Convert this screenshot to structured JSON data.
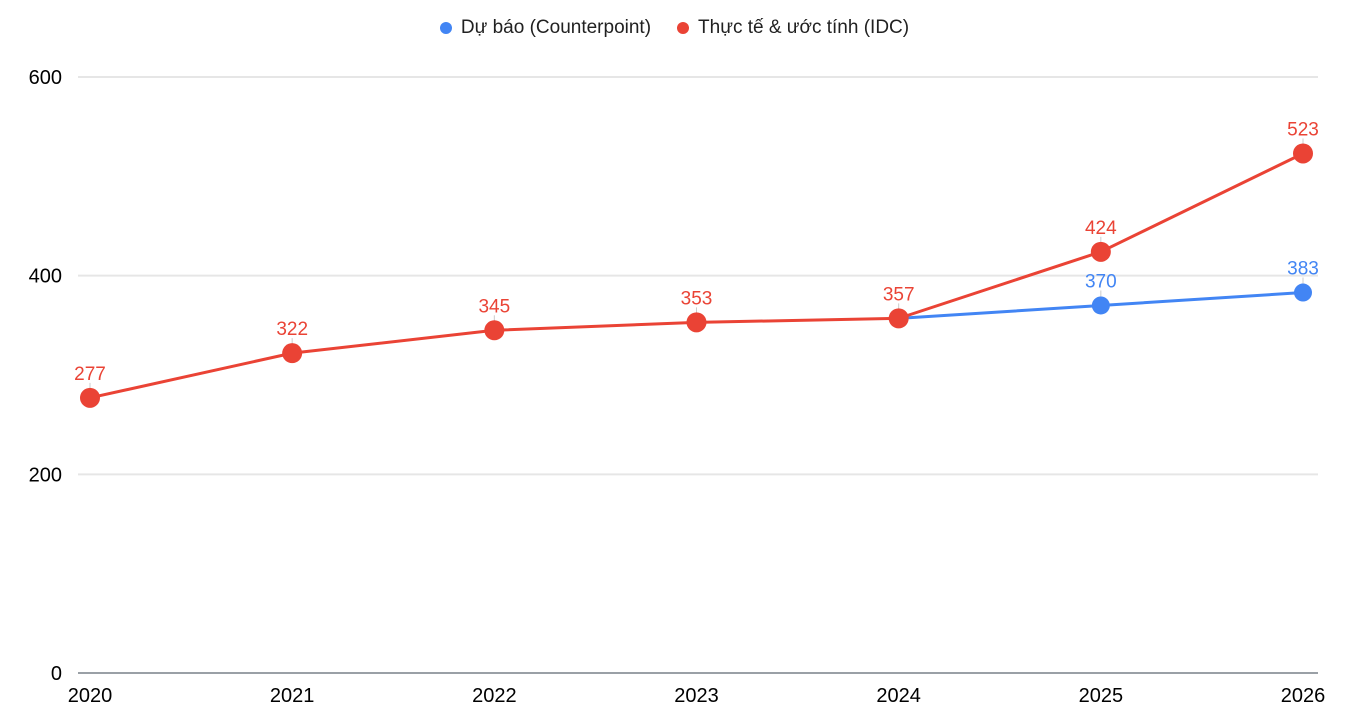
{
  "chart_data": {
    "type": "line",
    "title": "",
    "xlabel": "",
    "ylabel": "",
    "x": [
      "2020",
      "2021",
      "2022",
      "2023",
      "2024",
      "2025",
      "2026"
    ],
    "series": [
      {
        "name": "Dự báo (Counterpoint)",
        "color": "#4285F4",
        "values": [
          null,
          null,
          null,
          null,
          357,
          370,
          383
        ],
        "show_point": [
          false,
          false,
          false,
          false,
          false,
          true,
          true
        ],
        "show_label": [
          false,
          false,
          false,
          false,
          false,
          true,
          true
        ],
        "marker_radius": 9
      },
      {
        "name": "Thực tế & ước tính (IDC)",
        "color": "#EA4335",
        "values": [
          277,
          322,
          345,
          353,
          357,
          424,
          523
        ],
        "show_point": [
          true,
          true,
          true,
          true,
          true,
          true,
          true
        ],
        "show_label": [
          true,
          true,
          true,
          true,
          true,
          true,
          true
        ],
        "marker_radius": 10
      }
    ],
    "ylim": [
      0,
      600
    ],
    "yticks": [
      0,
      200,
      400,
      600
    ],
    "grid": true,
    "legend_position": "top"
  },
  "colors": {
    "background": "#ffffff",
    "grid": "#e6e6e6",
    "axis": "#9aa0a6",
    "tick_text": "#000000",
    "legend_text": "#212121",
    "leader": "#cccccc"
  }
}
